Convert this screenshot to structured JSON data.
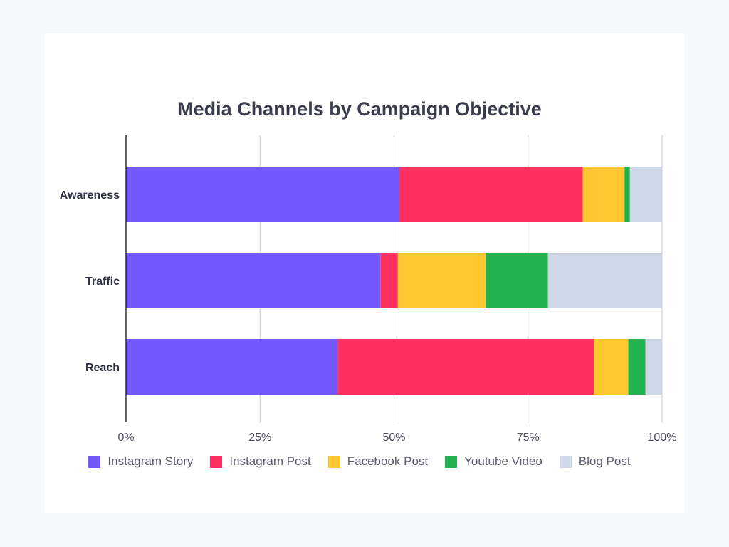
{
  "chart_data": {
    "type": "bar",
    "orientation": "horizontal",
    "stacked": true,
    "title": "Media Channels by Campaign Objective",
    "categories": [
      "Awareness",
      "Traffic",
      "Reach"
    ],
    "series": [
      {
        "name": "Instagram Story",
        "color": "#7357ff",
        "values": [
          51,
          47.5,
          39.5
        ]
      },
      {
        "name": "Instagram Post",
        "color": "#ff3060",
        "values": [
          34.2,
          3.2,
          47.8
        ]
      },
      {
        "name": "Facebook Post",
        "color": "#ffc72f",
        "values": [
          7.8,
          16.4,
          6.4
        ]
      },
      {
        "name": "Youtube Video",
        "color": "#22b14c",
        "values": [
          1.0,
          11.6,
          3.2
        ]
      },
      {
        "name": "Blog Post",
        "color": "#cfd8e6",
        "values": [
          6.0,
          21.3,
          3.1
        ]
      }
    ],
    "xticks": [
      "0%",
      "25%",
      "50%",
      "75%",
      "100%"
    ],
    "xlim": [
      0,
      100
    ],
    "grid": true,
    "legend_position": "bottom"
  }
}
